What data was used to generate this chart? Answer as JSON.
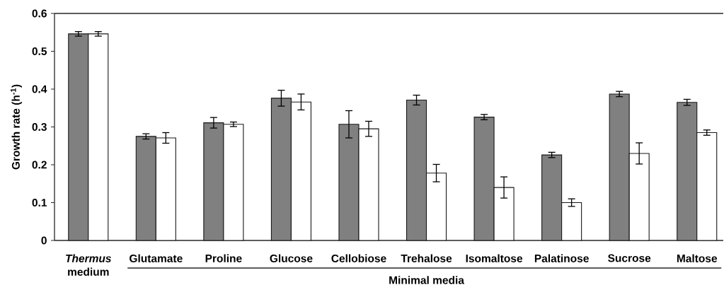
{
  "chart_data": {
    "type": "bar",
    "ylabel": "Growth rate (h$^{-1}$)",
    "categories": [
      "*Thermus* medium",
      "Glutamate",
      "Proline",
      "Glucose",
      "Cellobiose",
      "Trehalose",
      "Isomaltose",
      "Palatinose",
      "Sucrose",
      "Maltose"
    ],
    "series": [
      {
        "color": "#808080",
        "values": [
          0.546,
          0.275,
          0.311,
          0.376,
          0.307,
          0.371,
          0.326,
          0.226,
          0.387,
          0.365
        ],
        "errors": [
          0.006,
          0.007,
          0.014,
          0.021,
          0.036,
          0.013,
          0.007,
          0.007,
          0.007,
          0.008
        ]
      },
      {
        "color": "#ffffff",
        "values": [
          0.546,
          0.271,
          0.307,
          0.366,
          0.295,
          0.178,
          0.14,
          0.1,
          0.23,
          0.285
        ],
        "errors": [
          0.006,
          0.014,
          0.006,
          0.021,
          0.02,
          0.023,
          0.028,
          0.01,
          0.028,
          0.007
        ]
      }
    ],
    "ylim": [
      0,
      0.6
    ],
    "yticks": [
      0,
      0.1,
      0.2,
      0.3,
      0.4,
      0.5,
      0.6
    ],
    "annotations": [
      "Minimal media"
    ]
  }
}
